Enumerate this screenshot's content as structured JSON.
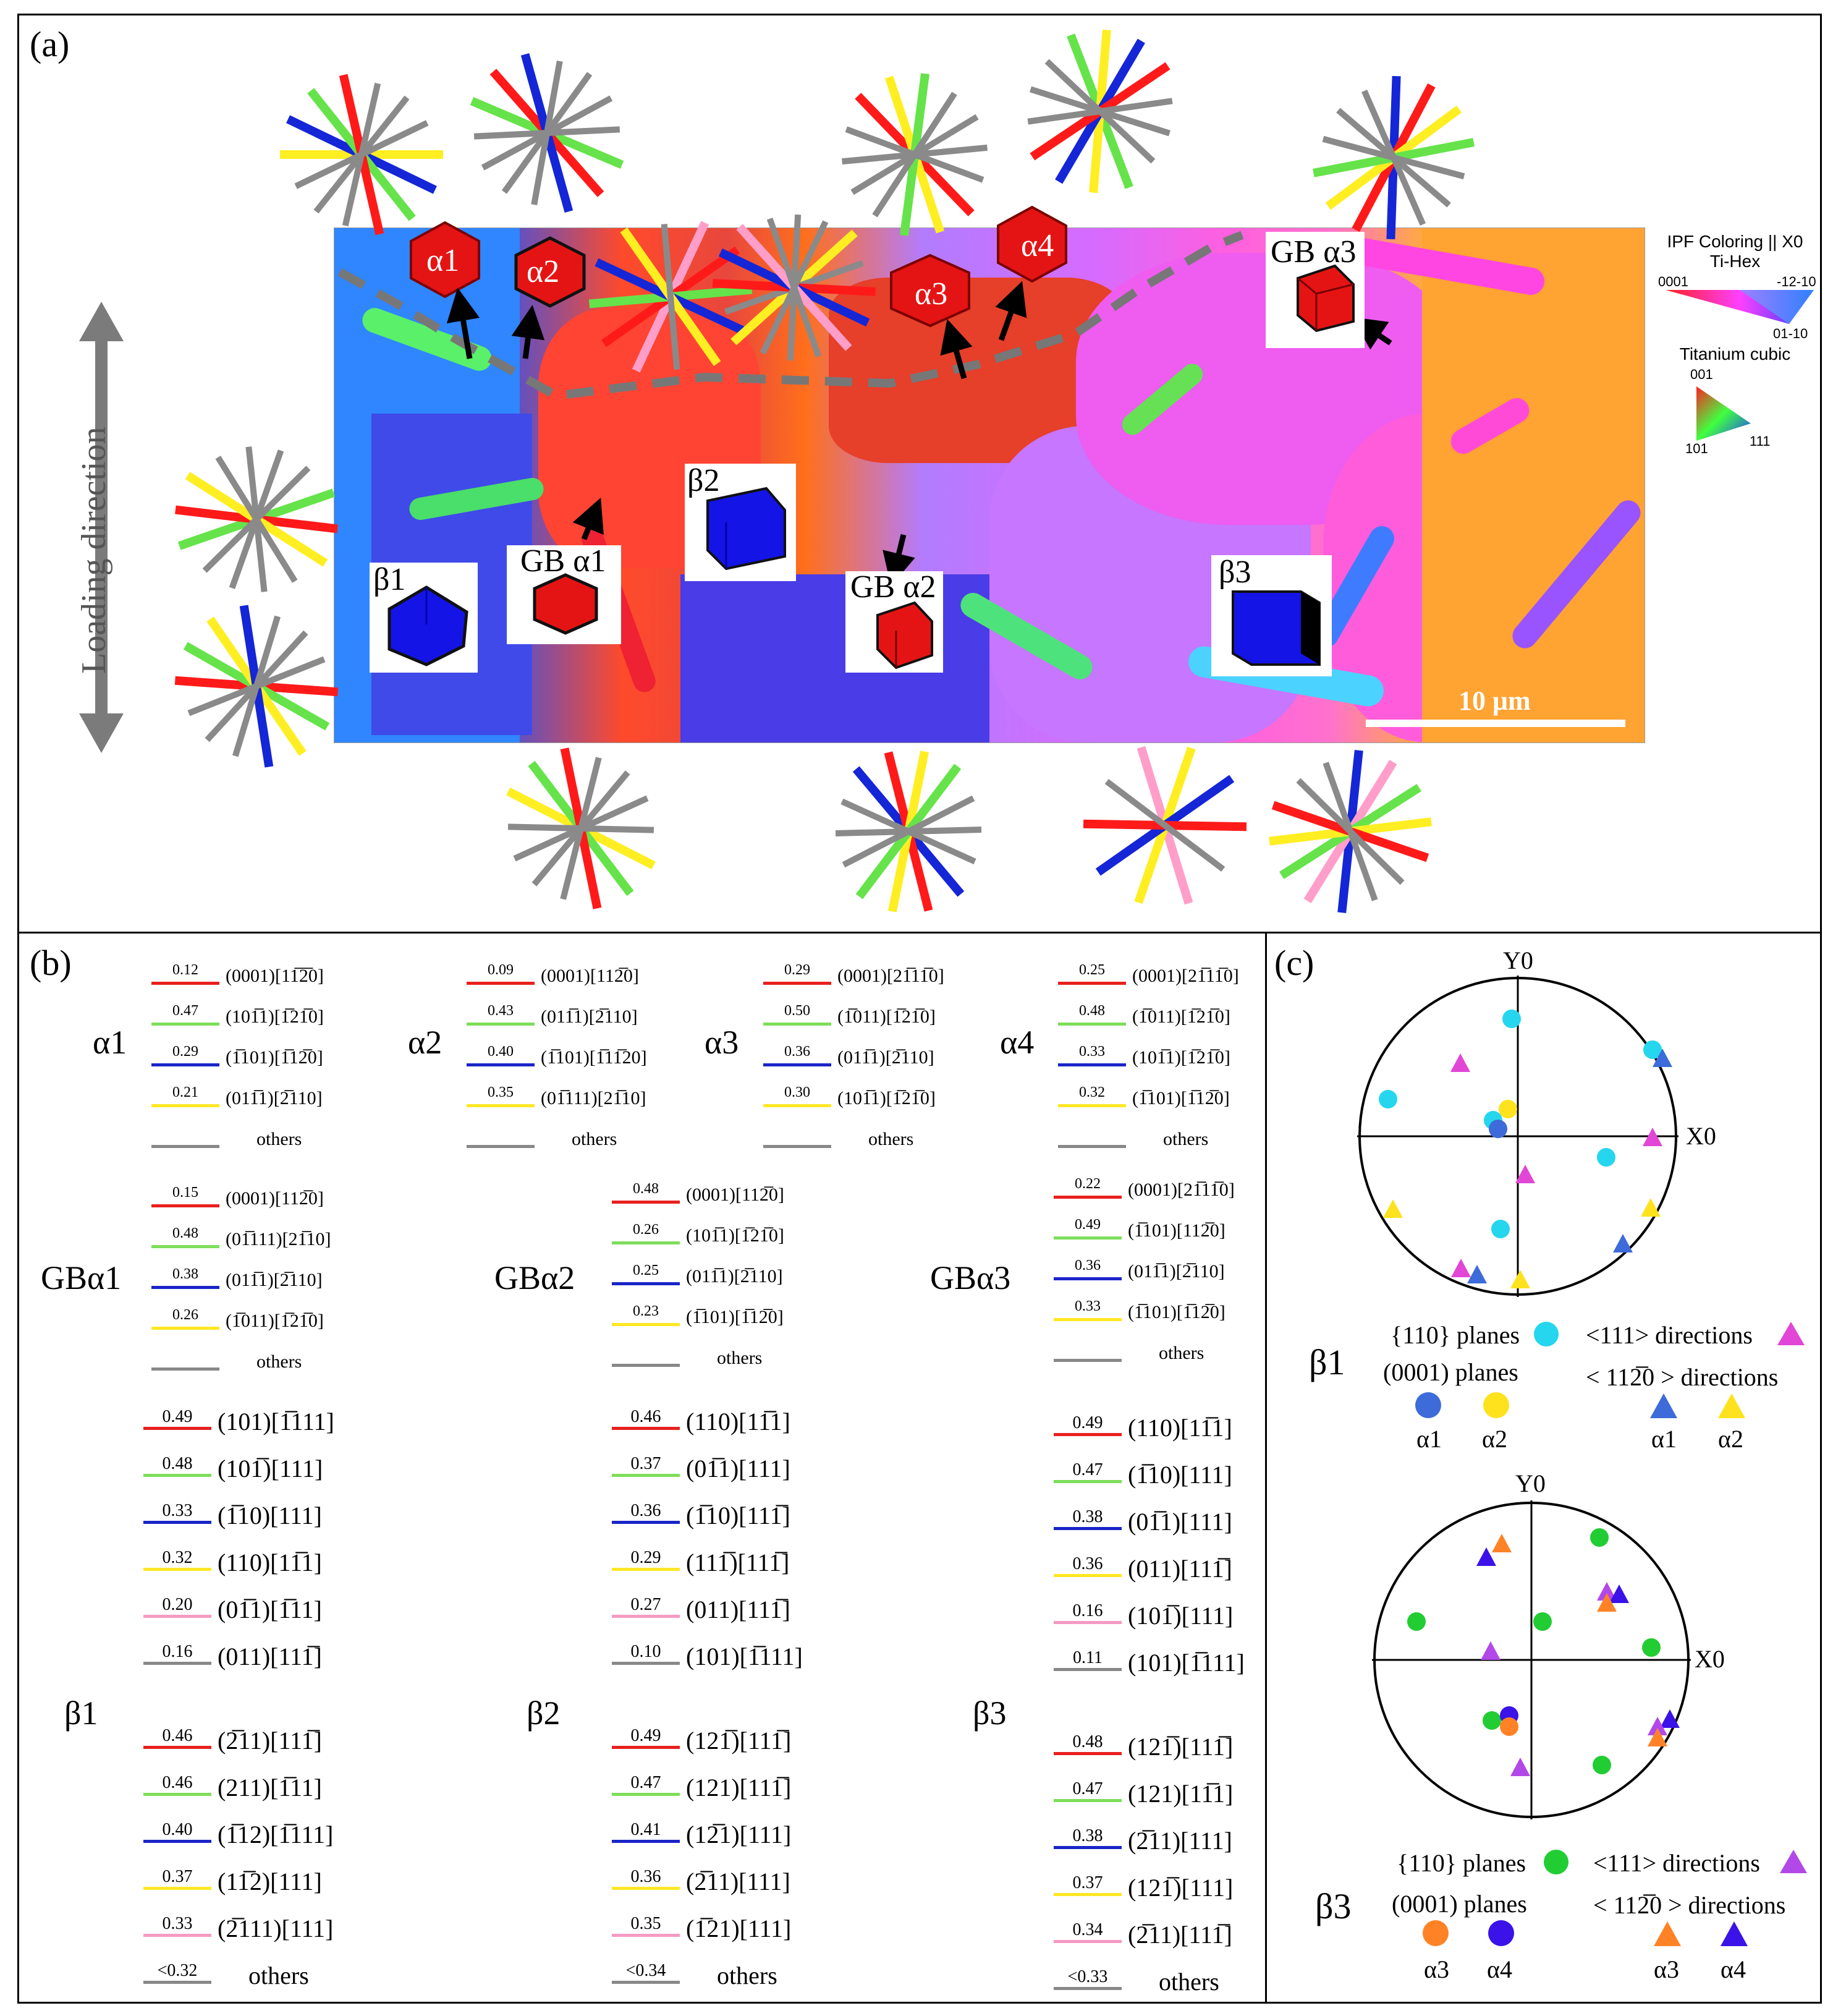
{
  "panel_labels": {
    "a": "(a)",
    "b": "(b)",
    "c": "(c)"
  },
  "panel_a": {
    "loading_direction": "Loading direction",
    "scale_bar": "10 μm",
    "grain_labels": {
      "a1": "α1",
      "a2": "α2",
      "a3": "α3",
      "a4": "α4",
      "gba1": "GB α1",
      "gba2": "GB α2",
      "gba3": "GB α3",
      "b1": "β1",
      "b2": "β2",
      "b3": "β3"
    },
    "ipf_legend": {
      "title": "IPF Coloring || X0",
      "hex_title": "Ti-Hex",
      "hex_labels": [
        "0001",
        "-12-10",
        "01-10"
      ],
      "cubic_title": "Titanium cubic",
      "cubic_labels": [
        "001",
        "101",
        "111"
      ]
    },
    "colors": {
      "red": "#ff1a1a",
      "green": "#66e34a",
      "blue": "#1426d6",
      "yellow": "#ffee22",
      "pink": "#ff9ec8",
      "gray": "#8a8a8a"
    }
  },
  "panel_b": {
    "alpha": [
      {
        "name": "α1",
        "rows": [
          {
            "v": "0.12",
            "label": "(0001)[11̅2̅0]",
            "color": "#e8201e"
          },
          {
            "v": "0.47",
            "label": "(101̅1)[1̅21̅0]",
            "color": "#7ede5a"
          },
          {
            "v": "0.29",
            "label": "(1̅101)[1̅12̅0]",
            "color": "#1a24c8"
          },
          {
            "v": "0.21",
            "label": "(011̅1)[2̅110]",
            "color": "#ffe724"
          },
          {
            "v": "",
            "label": "others",
            "color": "#888888"
          }
        ]
      },
      {
        "name": "α2",
        "rows": [
          {
            "v": "0.09",
            "label": "(0001)[112̅0]",
            "color": "#e8201e"
          },
          {
            "v": "0.43",
            "label": "(011̅1)[2̅110]",
            "color": "#7ede5a"
          },
          {
            "v": "0.40",
            "label": "(1̅101)[1̅11̅20]",
            "color": "#1a24c8"
          },
          {
            "v": "0.35",
            "label": "(01̅111)[21̅10]",
            "color": "#ffe724"
          },
          {
            "v": "",
            "label": "others",
            "color": "#888888"
          }
        ]
      },
      {
        "name": "α3",
        "rows": [
          {
            "v": "0.29",
            "label": "(0001)[21̅11̅0]",
            "color": "#e8201e"
          },
          {
            "v": "0.50",
            "label": "(1̅011)[1̅21̅0]",
            "color": "#7ede5a"
          },
          {
            "v": "0.36",
            "label": "(011̅1)[2̅110]",
            "color": "#1a24c8"
          },
          {
            "v": "0.30",
            "label": "(101̅1)[1̅21̅0]",
            "color": "#ffe724"
          },
          {
            "v": "",
            "label": "others",
            "color": "#888888"
          }
        ]
      },
      {
        "name": "α4",
        "rows": [
          {
            "v": "0.25",
            "label": "(0001)[21̅11̅0]",
            "color": "#e8201e"
          },
          {
            "v": "0.48",
            "label": "(1̅011)[1̅21̅0]",
            "color": "#7ede5a"
          },
          {
            "v": "0.33",
            "label": "(101̅1)[1̅21̅0]",
            "color": "#1a24c8"
          },
          {
            "v": "0.32",
            "label": "(1̅101)[1̅12̅0]",
            "color": "#ffe724"
          },
          {
            "v": "",
            "label": "others",
            "color": "#888888"
          }
        ]
      }
    ],
    "gb": [
      {
        "name": "GBα1",
        "rows": [
          {
            "v": "0.15",
            "label": "(0001)[112̅0]",
            "color": "#e8201e"
          },
          {
            "v": "0.48",
            "label": "(01̅111)[21̅10]",
            "color": "#7ede5a"
          },
          {
            "v": "0.38",
            "label": "(011̅1)[2̅110]",
            "color": "#1a24c8"
          },
          {
            "v": "0.26",
            "label": "(1̅011)[1̅21̅0]",
            "color": "#ffe724"
          },
          {
            "v": "",
            "label": "others",
            "color": "#888888"
          }
        ]
      },
      {
        "name": "GBα2",
        "rows": [
          {
            "v": "0.48",
            "label": "(0001)[112̅0]",
            "color": "#e8201e"
          },
          {
            "v": "0.26",
            "label": "(101̅1)[1̅21̅0]",
            "color": "#7ede5a"
          },
          {
            "v": "0.25",
            "label": "(011̅1)[2̅110]",
            "color": "#1a24c8"
          },
          {
            "v": "0.23",
            "label": "(1̅101)[1̅12̅0]",
            "color": "#ffe724"
          },
          {
            "v": "",
            "label": "others",
            "color": "#888888"
          }
        ]
      },
      {
        "name": "GBα3",
        "rows": [
          {
            "v": "0.22",
            "label": "(0001)[21̅11̅0]",
            "color": "#e8201e"
          },
          {
            "v": "0.49",
            "label": "(1̅101)[112̅0]",
            "color": "#7ede5a"
          },
          {
            "v": "0.36",
            "label": "(011̅1)[2̅110]",
            "color": "#1a24c8"
          },
          {
            "v": "0.33",
            "label": "(1̅101)[1̅12̅0]",
            "color": "#ffe724"
          },
          {
            "v": "",
            "label": "others",
            "color": "#888888"
          }
        ]
      }
    ],
    "beta": [
      {
        "name": "β1",
        "rows": [
          {
            "v": "0.49",
            "label": "(101)[1̅111]",
            "color": "#e8201e"
          },
          {
            "v": "0.48",
            "label": "(101̅)[111]",
            "color": "#7ede5a"
          },
          {
            "v": "0.33",
            "label": "(1̅10)[111]",
            "color": "#1a24c8"
          },
          {
            "v": "0.32",
            "label": "(110)[11̅1]",
            "color": "#ffe724"
          },
          {
            "v": "0.20",
            "label": "(01̅1)[1̅11]",
            "color": "#f59ac3"
          },
          {
            "v": "0.16",
            "label": "(011)[111̅]",
            "color": "#888888"
          },
          {
            "v": "0.46",
            "label": "(2̅11)[111̅]",
            "color": "#e8201e"
          },
          {
            "v": "0.46",
            "label": "(211)[1̅11]",
            "color": "#7ede5a"
          },
          {
            "v": "0.40",
            "label": "(1̅12)[1̅111]",
            "color": "#1a24c8"
          },
          {
            "v": "0.37",
            "label": "(11̅2)[111]",
            "color": "#ffe724"
          },
          {
            "v": "0.33",
            "label": "(2̅111)[111]",
            "color": "#f59ac3"
          },
          {
            "v": "<0.32",
            "label": "others",
            "color": "#888888"
          }
        ]
      },
      {
        "name": "β2",
        "rows": [
          {
            "v": "0.46",
            "label": "(110)[11̅1]",
            "color": "#e8201e"
          },
          {
            "v": "0.37",
            "label": "(01̅1)[111]",
            "color": "#7ede5a"
          },
          {
            "v": "0.36",
            "label": "(1̅10)[111̅]",
            "color": "#1a24c8"
          },
          {
            "v": "0.29",
            "label": "(111̅)[111̅]",
            "color": "#ffe724"
          },
          {
            "v": "0.27",
            "label": "(011)[111̅]",
            "color": "#f59ac3"
          },
          {
            "v": "0.10",
            "label": "(101)[1̅111]",
            "color": "#888888"
          },
          {
            "v": "0.49",
            "label": "(121̅)[111̅]",
            "color": "#e8201e"
          },
          {
            "v": "0.47",
            "label": "(121)[111̅]",
            "color": "#7ede5a"
          },
          {
            "v": "0.41",
            "label": "(12̅1)[111]",
            "color": "#1a24c8"
          },
          {
            "v": "0.36",
            "label": "(2̅11)[111]",
            "color": "#ffe724"
          },
          {
            "v": "0.35",
            "label": "(1̅21)[111]",
            "color": "#f59ac3"
          },
          {
            "v": "<0.34",
            "label": "others",
            "color": "#888888"
          }
        ]
      },
      {
        "name": "β3",
        "rows": [
          {
            "v": "0.49",
            "label": "(110)[11̅1]",
            "color": "#e8201e"
          },
          {
            "v": "0.47",
            "label": "(1̅10)[111]",
            "color": "#7ede5a"
          },
          {
            "v": "0.38",
            "label": "(01̅1)[111]",
            "color": "#1a24c8"
          },
          {
            "v": "0.36",
            "label": "(011)[111̅]",
            "color": "#ffe724"
          },
          {
            "v": "0.16",
            "label": "(101̅)[111]",
            "color": "#f59ac3"
          },
          {
            "v": "0.11",
            "label": "(101)[1̅111]",
            "color": "#888888"
          },
          {
            "v": "0.48",
            "label": "(121̅)[111̅]",
            "color": "#e8201e"
          },
          {
            "v": "0.47",
            "label": "(121)[11̅1]",
            "color": "#7ede5a"
          },
          {
            "v": "0.38",
            "label": "(2̅11)[111]",
            "color": "#1a24c8"
          },
          {
            "v": "0.37",
            "label": "(121̅)[111]",
            "color": "#ffe724"
          },
          {
            "v": "0.34",
            "label": "(2̅11)[111̅]",
            "color": "#f59ac3"
          },
          {
            "v": "<0.33",
            "label": "others",
            "color": "#888888"
          }
        ]
      }
    ]
  },
  "panel_c": {
    "axis_x": "X0",
    "axis_y": "Y0",
    "beta1": {
      "name": "β1",
      "planes_110": "{110} planes",
      "dirs_111": "<111> directions",
      "planes_0001": "(0001) planes",
      "dirs_1120": "< 112̅0 > directions",
      "alpha_a": "α1",
      "alpha_b": "α2"
    },
    "beta3": {
      "name": "β3",
      "planes_110": "{110} planes",
      "dirs_111": "<111> directions",
      "planes_0001": "(0001) planes",
      "dirs_1120": "< 112̅0 > directions",
      "alpha_a": "α3",
      "alpha_b": "α4"
    },
    "colors": {
      "cyan": "#25d6ee",
      "magenta": "#e246d6",
      "blue_dot": "#3d6bd9",
      "yellow": "#ffe21e",
      "green": "#22cc33",
      "violet": "#b348e8",
      "orange": "#ff8326",
      "indigo": "#3b12e8"
    }
  }
}
